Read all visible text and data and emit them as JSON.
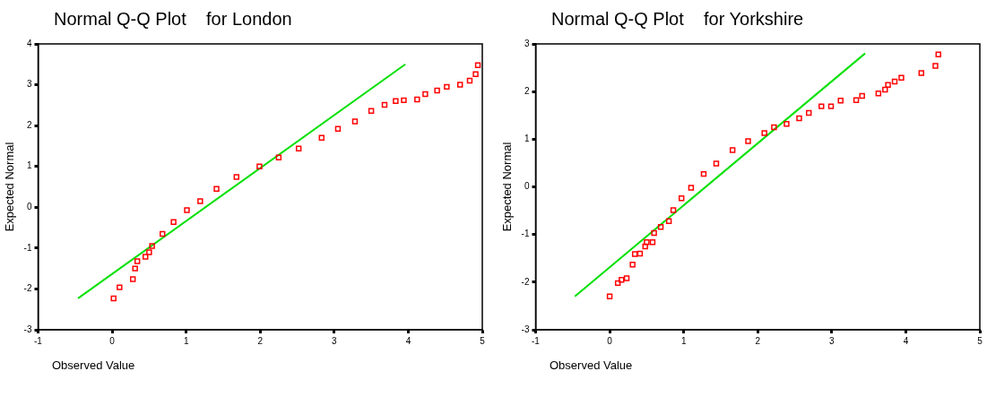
{
  "chart_data": [
    {
      "type": "scatter",
      "title": "Normal Q-Q Plot    for London",
      "xlabel": "Observed Value",
      "ylabel": "Expected Normal",
      "xlim": [
        -1,
        5
      ],
      "ylim": [
        -3,
        4
      ],
      "xticks": [
        -1,
        0,
        1,
        2,
        3,
        4,
        5
      ],
      "yticks": [
        -3,
        -2,
        -1,
        0,
        1,
        2,
        3,
        4
      ],
      "grid": false,
      "legend": false,
      "series": [
        {
          "marker": "square",
          "color": "#ff0000",
          "x": [
            0.02,
            0.1,
            0.28,
            0.31,
            0.34,
            0.45,
            0.5,
            0.54,
            0.68,
            0.83,
            1.01,
            1.19,
            1.41,
            1.68,
            1.99,
            2.25,
            2.52,
            2.83,
            3.05,
            3.28,
            3.5,
            3.68,
            3.83,
            3.94,
            4.12,
            4.23,
            4.39,
            4.52,
            4.7,
            4.83,
            4.91,
            4.94
          ],
          "values": [
            -2.23,
            -1.96,
            -1.76,
            -1.5,
            -1.32,
            -1.21,
            -1.1,
            -0.95,
            -0.65,
            -0.36,
            -0.07,
            0.15,
            0.45,
            0.74,
            1.0,
            1.22,
            1.44,
            1.7,
            1.92,
            2.1,
            2.36,
            2.51,
            2.6,
            2.62,
            2.64,
            2.77,
            2.86,
            2.95,
            3.0,
            3.1,
            3.26,
            3.48
          ]
        },
        {
          "type": "line",
          "marker": "none",
          "color": "#00e000",
          "x": [
            -0.46,
            3.96
          ],
          "values": [
            -2.23,
            3.5
          ]
        }
      ]
    },
    {
      "type": "scatter",
      "title": "Normal Q-Q Plot    for Yorkshire",
      "xlabel": "Observed Value",
      "ylabel": "Expected Normal",
      "xlim": [
        -1,
        5
      ],
      "ylim": [
        -3,
        3
      ],
      "xticks": [
        -1,
        0,
        1,
        2,
        3,
        4,
        5
      ],
      "yticks": [
        -3,
        -2,
        -1,
        0,
        1,
        2,
        3
      ],
      "grid": false,
      "legend": false,
      "series": [
        {
          "marker": "square",
          "color": "#ff0000",
          "x": [
            0.0,
            0.11,
            0.16,
            0.23,
            0.31,
            0.34,
            0.41,
            0.48,
            0.5,
            0.58,
            0.6,
            0.69,
            0.8,
            0.86,
            0.97,
            1.1,
            1.27,
            1.44,
            1.66,
            1.87,
            2.09,
            2.22,
            2.39,
            2.56,
            2.69,
            2.86,
            2.99,
            3.12,
            3.33,
            3.41,
            3.63,
            3.72,
            3.76,
            3.85,
            3.94,
            4.21,
            4.4,
            4.44
          ],
          "values": [
            -2.3,
            -2.02,
            -1.95,
            -1.92,
            -1.63,
            -1.41,
            -1.4,
            -1.25,
            -1.16,
            -1.16,
            -0.97,
            -0.84,
            -0.72,
            -0.49,
            -0.24,
            -0.02,
            0.27,
            0.49,
            0.77,
            0.96,
            1.13,
            1.25,
            1.32,
            1.44,
            1.55,
            1.69,
            1.69,
            1.81,
            1.82,
            1.91,
            1.96,
            2.04,
            2.14,
            2.21,
            2.29,
            2.39,
            2.54,
            2.78
          ]
        },
        {
          "type": "line",
          "marker": "none",
          "color": "#00e000",
          "x": [
            -0.47,
            3.45
          ],
          "values": [
            -2.3,
            2.8
          ]
        }
      ]
    }
  ]
}
